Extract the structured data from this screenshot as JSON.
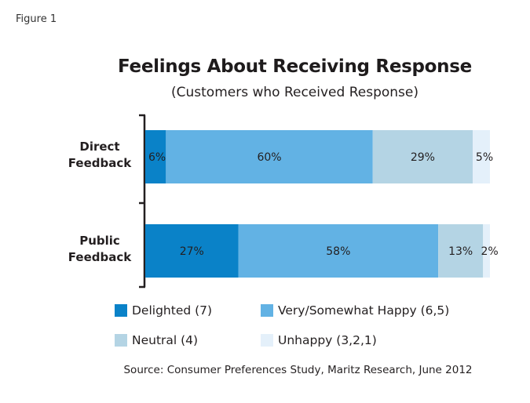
{
  "figure_label": "Figure 1",
  "chart_data": {
    "type": "bar",
    "orientation": "horizontal",
    "stacked": true,
    "title": "Feelings About Receiving Response",
    "subtitle": "(Customers who Received Response)",
    "categories": [
      "Direct\nFeedback",
      "Public\nFeedback"
    ],
    "category_lines": [
      [
        "Direct",
        "Feedback"
      ],
      [
        "Public",
        "Feedback"
      ]
    ],
    "series": [
      {
        "name": "Delighted (7)",
        "color": "#0a82c8",
        "values": [
          6,
          27
        ],
        "labels": [
          "6%",
          "27%"
        ]
      },
      {
        "name": "Very/Somewhat Happy (6,5)",
        "color": "#62b2e4",
        "values": [
          60,
          58
        ],
        "labels": [
          "60%",
          "58%"
        ]
      },
      {
        "name": "Neutral (4)",
        "color": "#b4d4e4",
        "values": [
          29,
          13
        ],
        "labels": [
          "29%",
          "13%"
        ]
      },
      {
        "name": "Unhappy (3,2,1)",
        "color": "#e4f0fa",
        "values": [
          5,
          2
        ],
        "labels": [
          "5%",
          "2%"
        ]
      }
    ],
    "xlim": [
      0,
      100
    ],
    "xlabel": "",
    "ylabel": "",
    "grid": false,
    "legend_position": "bottom",
    "source": "Source: Consumer Preferences Study, Maritz Research, June 2012"
  }
}
